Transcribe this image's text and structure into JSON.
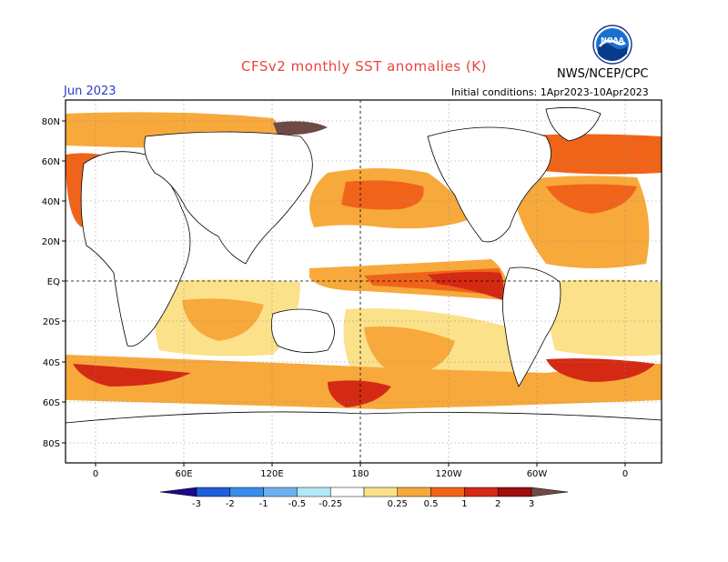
{
  "title": "CFSv2 monthly SST anomalies (K)",
  "agency": "NWS/NCEP/CPC",
  "logo_text": "NOAA",
  "period": "Jun 2023",
  "initial_conditions": "Initial conditions: 1Apr2023-10Apr2023",
  "lat_labels": [
    "80N",
    "60N",
    "40N",
    "20N",
    "EQ",
    "20S",
    "40S",
    "60S",
    "80S"
  ],
  "lon_labels": [
    "0",
    "60E",
    "120E",
    "180",
    "120W",
    "60W",
    "0"
  ],
  "colorbar": {
    "labels": [
      "-3",
      "-2",
      "-1",
      "-0.5",
      "-0.25",
      "0.25",
      "0.5",
      "1",
      "2",
      "3"
    ],
    "colors": [
      "#1a0a8c",
      "#1f5ed8",
      "#3a8ce8",
      "#6cb0f0",
      "#b4e8f8",
      "#ffffff",
      "#fbe18a",
      "#f7a93c",
      "#f0641a",
      "#d42a14",
      "#9e0c0c",
      "#6e4a44"
    ]
  },
  "map_colors": {
    "land": "#ffffff",
    "neutral": "#ffffff",
    "coast": "#000000",
    "grid": "#8a8a8a"
  }
}
